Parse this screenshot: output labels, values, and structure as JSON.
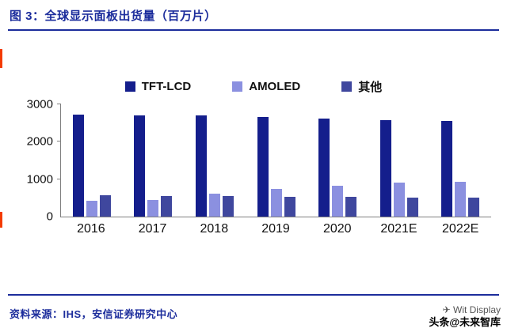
{
  "header": {
    "title": "图 3：全球显示面板出货量（百万片）"
  },
  "colors": {
    "accent_blue": "#1c2d9c",
    "series_tft_lcd": "#141e8c",
    "series_amoled": "#8b90e0",
    "series_other": "#3f479e",
    "red_edge_mark": "#f43b00"
  },
  "chart_data": {
    "type": "bar",
    "title": "全球显示面板出货量（百万片）",
    "categories": [
      "2016",
      "2017",
      "2018",
      "2019",
      "2020",
      "2021E",
      "2022E"
    ],
    "series": [
      {
        "name": "TFT-LCD",
        "color": "#141e8c",
        "values": [
          2720,
          2700,
          2700,
          2660,
          2610,
          2570,
          2550
        ]
      },
      {
        "name": "AMOLED",
        "color": "#8b90e0",
        "values": [
          430,
          450,
          620,
          730,
          815,
          900,
          920
        ]
      },
      {
        "name": "其他",
        "color": "#3f479e",
        "values": [
          580,
          560,
          540,
          535,
          520,
          515,
          515
        ]
      }
    ],
    "xlabel": "",
    "ylabel": "",
    "ylim": [
      0,
      3000
    ],
    "yticks": [
      0,
      1000,
      2000,
      3000
    ],
    "grid": false,
    "legend_position": "top"
  },
  "footer": {
    "source": "资料来源：IHS，安信证券研究中心"
  },
  "watermark": {
    "line1": "✈ Wit Display",
    "line2": "头条@未来智库"
  }
}
